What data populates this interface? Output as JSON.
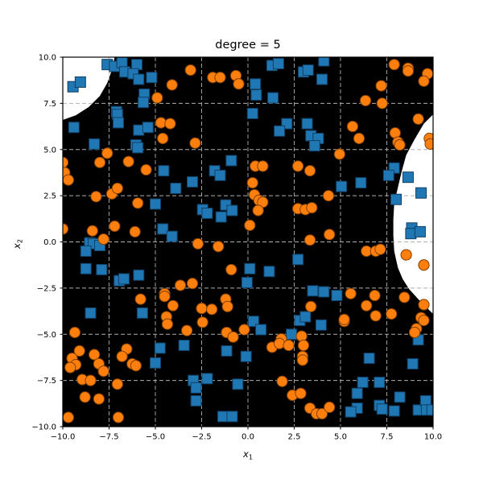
{
  "title": "degree = 5",
  "chart_data": {
    "type": "scatter",
    "title": "degree = 5",
    "xlabel": {
      "base": "x",
      "sub": "1"
    },
    "ylabel": {
      "base": "x",
      "sub": "2"
    },
    "xlim": [
      -10,
      10
    ],
    "ylim": [
      -10,
      10
    ],
    "grid": true,
    "grid_color": "#b0b0b0",
    "background_color": "#ffffff",
    "decision_region_color": "#000000",
    "white_region_color": "#ffffff",
    "xticks": {
      "values": [
        -10,
        -7.5,
        -5,
        -2.5,
        0,
        2.5,
        5,
        7.5,
        10
      ],
      "labels": [
        "−10.0",
        "−7.5",
        "−5.0",
        "−2.5",
        "0.0",
        "2.5",
        "5.0",
        "7.5",
        "10.0"
      ]
    },
    "yticks": {
      "values": [
        -10,
        -7.5,
        -5,
        -2.5,
        0,
        2.5,
        5,
        7.5,
        10
      ],
      "labels": [
        "−10.0",
        "−7.5",
        "−5.0",
        "−2.5",
        "0.0",
        "2.5",
        "5.0",
        "7.5",
        "10.0"
      ]
    },
    "white_regions": [
      {
        "name": "top-left-region",
        "points": [
          [
            -10,
            6.6
          ],
          [
            -9.3,
            6.85
          ],
          [
            -8.6,
            7.3
          ],
          [
            -8.0,
            7.9
          ],
          [
            -7.6,
            8.6
          ],
          [
            -7.35,
            9.3
          ],
          [
            -7.2,
            10
          ],
          [
            -10,
            10
          ]
        ]
      },
      {
        "name": "right-region",
        "points": [
          [
            10,
            6.9
          ],
          [
            9.5,
            6.4
          ],
          [
            9.0,
            5.55
          ],
          [
            8.55,
            4.7
          ],
          [
            8.3,
            3.8
          ],
          [
            8.1,
            2.95
          ],
          [
            7.9,
            2.1
          ],
          [
            7.85,
            1.2
          ],
          [
            7.85,
            0.35
          ],
          [
            7.9,
            -0.5
          ],
          [
            8.1,
            -1.4
          ],
          [
            8.35,
            -2.0
          ],
          [
            8.7,
            -2.55
          ],
          [
            9.2,
            -3.1
          ],
          [
            9.6,
            -3.5
          ],
          [
            10,
            -3.9
          ]
        ]
      }
    ],
    "series": [
      {
        "name": "class-0-blue-squares",
        "marker": "square",
        "color": "#1f77b4",
        "edge_color": "#123f63",
        "points": [
          [
            -9.45,
            8.4
          ],
          [
            -9.05,
            8.65
          ],
          [
            -7.6,
            9.6
          ],
          [
            -7.2,
            9.5
          ],
          [
            -6.8,
            9.7
          ],
          [
            -6.0,
            9.6
          ],
          [
            -6.65,
            9.2
          ],
          [
            -6.2,
            9.1
          ],
          [
            -5.9,
            8.8
          ],
          [
            -5.2,
            8.9
          ],
          [
            -5.6,
            8.0
          ],
          [
            -5.65,
            7.55
          ],
          [
            -7.1,
            7.05
          ],
          [
            -7.05,
            6.9
          ],
          [
            -7.0,
            6.45
          ],
          [
            -9.4,
            6.2
          ],
          [
            -5.9,
            6.05
          ],
          [
            -5.4,
            6.2
          ],
          [
            -8.3,
            5.3
          ],
          [
            -6.05,
            5.25
          ],
          [
            -5.95,
            5.1
          ],
          [
            -4.55,
            3.85
          ],
          [
            1.3,
            9.55
          ],
          [
            1.65,
            9.65
          ],
          [
            3.0,
            9.2
          ],
          [
            3.25,
            9.3
          ],
          [
            0.4,
            8.55
          ],
          [
            0.45,
            7.95
          ],
          [
            1.35,
            7.8
          ],
          [
            0.25,
            6.95
          ],
          [
            2.1,
            6.4
          ],
          [
            1.7,
            6.0
          ],
          [
            3.2,
            6.4
          ],
          [
            3.4,
            5.75
          ],
          [
            -0.9,
            4.4
          ],
          [
            -1.8,
            3.85
          ],
          [
            -1.5,
            3.6
          ],
          [
            4.1,
            9.8
          ],
          [
            4.0,
            8.8
          ],
          [
            3.8,
            5.6
          ],
          [
            3.6,
            5.2
          ],
          [
            7.9,
            4.0
          ],
          [
            7.6,
            3.6
          ],
          [
            8.65,
            3.5
          ],
          [
            -3.9,
            2.9
          ],
          [
            -5.0,
            2.05
          ],
          [
            -4.6,
            0.7
          ],
          [
            -4.1,
            0.3
          ],
          [
            -8.55,
            -0.05
          ],
          [
            -8.35,
            -0.1
          ],
          [
            -8.0,
            -0.2
          ],
          [
            -8.75,
            -0.5
          ],
          [
            -8.75,
            -1.45
          ],
          [
            -7.9,
            -1.5
          ],
          [
            -6.95,
            -2.1
          ],
          [
            -6.7,
            -2.0
          ],
          [
            -5.9,
            -1.8
          ],
          [
            -3.0,
            3.25
          ],
          [
            -1.2,
            2.0
          ],
          [
            -0.85,
            1.7
          ],
          [
            -2.45,
            1.75
          ],
          [
            -2.2,
            1.55
          ],
          [
            -1.45,
            1.35
          ],
          [
            0.1,
            -1.45
          ],
          [
            1.15,
            -1.6
          ],
          [
            -0.05,
            -2.2
          ],
          [
            2.7,
            -0.95
          ],
          [
            5.05,
            3.0
          ],
          [
            6.1,
            3.2
          ],
          [
            9.35,
            2.65
          ],
          [
            8.85,
            0.75
          ],
          [
            8.8,
            0.45
          ],
          [
            9.3,
            0.55
          ],
          [
            3.5,
            -2.65
          ],
          [
            4.1,
            -2.7
          ],
          [
            4.8,
            -2.9
          ],
          [
            8.0,
            2.3
          ],
          [
            -8.5,
            -3.85
          ],
          [
            -5.7,
            -3.85
          ],
          [
            -4.75,
            -5.75
          ],
          [
            -5.0,
            -6.55
          ],
          [
            0.3,
            -4.3
          ],
          [
            0.7,
            -4.75
          ],
          [
            -3.45,
            -5.6
          ],
          [
            -1.15,
            -5.9
          ],
          [
            -0.1,
            -6.2
          ],
          [
            2.8,
            -4.25
          ],
          [
            3.1,
            -4.05
          ],
          [
            2.35,
            -5.0
          ],
          [
            -2.95,
            -7.5
          ],
          [
            -2.2,
            -7.4
          ],
          [
            -2.8,
            -7.9
          ],
          [
            -2.8,
            -8.6
          ],
          [
            -0.55,
            -7.7
          ],
          [
            -1.35,
            -9.45
          ],
          [
            -0.85,
            -9.45
          ],
          [
            3.95,
            -4.5
          ],
          [
            9.2,
            -5.3
          ],
          [
            8.9,
            -6.6
          ],
          [
            6.55,
            -6.3
          ],
          [
            6.2,
            -7.6
          ],
          [
            7.1,
            -7.6
          ],
          [
            5.9,
            -8.2
          ],
          [
            8.2,
            -8.4
          ],
          [
            5.9,
            -9.0
          ],
          [
            5.55,
            -9.2
          ],
          [
            7.1,
            -8.85
          ],
          [
            7.25,
            -9.05
          ],
          [
            7.9,
            -9.15
          ],
          [
            9.2,
            -9.1
          ],
          [
            9.6,
            -8.6
          ],
          [
            9.65,
            -9.1
          ],
          [
            9.95,
            -9.1
          ]
        ]
      },
      {
        "name": "class-1-orange-circles",
        "marker": "circle",
        "color": "#ff7f0e",
        "edge_color": "#804000",
        "points": [
          [
            -4.1,
            8.5
          ],
          [
            -4.9,
            7.8
          ],
          [
            -4.7,
            6.45
          ],
          [
            -4.2,
            6.4
          ],
          [
            -4.6,
            5.6
          ],
          [
            -7.6,
            4.8
          ],
          [
            -8.0,
            4.3
          ],
          [
            -6.45,
            4.35
          ],
          [
            -5.5,
            3.9
          ],
          [
            -10,
            4.3
          ],
          [
            -9.9,
            3.75
          ],
          [
            -3.1,
            9.3
          ],
          [
            -1.9,
            8.9
          ],
          [
            -1.5,
            8.9
          ],
          [
            -0.65,
            9.0
          ],
          [
            -0.5,
            8.55
          ],
          [
            -2.85,
            5.35
          ],
          [
            0.4,
            4.1
          ],
          [
            0.8,
            4.1
          ],
          [
            2.7,
            4.1
          ],
          [
            3.35,
            3.85
          ],
          [
            7.9,
            9.6
          ],
          [
            8.65,
            9.4
          ],
          [
            8.65,
            9.25
          ],
          [
            9.7,
            9.1
          ],
          [
            9.5,
            8.7
          ],
          [
            7.2,
            8.45
          ],
          [
            6.35,
            7.65
          ],
          [
            7.25,
            7.5
          ],
          [
            9.2,
            6.65
          ],
          [
            5.65,
            6.25
          ],
          [
            6.0,
            5.6
          ],
          [
            7.95,
            5.9
          ],
          [
            8.1,
            5.4
          ],
          [
            8.2,
            5.25
          ],
          [
            9.8,
            5.6
          ],
          [
            9.85,
            5.3
          ],
          [
            4.95,
            4.75
          ],
          [
            -9.7,
            3.35
          ],
          [
            -8.2,
            2.45
          ],
          [
            -7.35,
            2.6
          ],
          [
            -7.05,
            2.9
          ],
          [
            -5.95,
            2.1
          ],
          [
            -10,
            0.7
          ],
          [
            -8.4,
            0.6
          ],
          [
            -7.2,
            0.85
          ],
          [
            -6.1,
            0.55
          ],
          [
            -7.8,
            0.15
          ],
          [
            -3.65,
            -2.35
          ],
          [
            -4.5,
            -2.8
          ],
          [
            -4.5,
            -2.95
          ],
          [
            -5.8,
            -3.1
          ],
          [
            0.25,
            3.2
          ],
          [
            0.35,
            2.55
          ],
          [
            0.6,
            2.25
          ],
          [
            0.8,
            2.15
          ],
          [
            0.55,
            1.7
          ],
          [
            0.1,
            0.9
          ],
          [
            2.7,
            1.8
          ],
          [
            3.1,
            1.75
          ],
          [
            3.45,
            1.85
          ],
          [
            -2.7,
            -0.1
          ],
          [
            -1.6,
            -0.25
          ],
          [
            -0.9,
            -1.5
          ],
          [
            -3.0,
            -2.25
          ],
          [
            3.35,
            0.1
          ],
          [
            -1.2,
            -3.1
          ],
          [
            4.35,
            2.5
          ],
          [
            4.4,
            0.4
          ],
          [
            6.4,
            -0.5
          ],
          [
            6.9,
            -0.5
          ],
          [
            7.15,
            -0.4
          ],
          [
            8.55,
            -0.7
          ],
          [
            9.5,
            -1.25
          ],
          [
            5.55,
            -2.8
          ],
          [
            6.85,
            -2.9
          ],
          [
            8.45,
            -3.0
          ],
          [
            6.4,
            -3.45
          ],
          [
            -9.35,
            -4.9
          ],
          [
            -9.1,
            -5.9
          ],
          [
            -9.5,
            -6.3
          ],
          [
            -9.3,
            -6.65
          ],
          [
            -9.6,
            -6.8
          ],
          [
            -8.3,
            -6.1
          ],
          [
            -8.05,
            -6.6
          ],
          [
            -7.8,
            -7.0
          ],
          [
            -8.95,
            -7.45
          ],
          [
            -8.5,
            -7.5
          ],
          [
            -8.8,
            -8.4
          ],
          [
            -8.05,
            -8.5
          ],
          [
            -6.55,
            -5.8
          ],
          [
            -6.8,
            -6.2
          ],
          [
            -6.25,
            -6.6
          ],
          [
            -6.05,
            -6.7
          ],
          [
            -7.05,
            -7.7
          ],
          [
            -7.0,
            -9.5
          ],
          [
            -9.7,
            -9.5
          ],
          [
            -4.4,
            -4.05
          ],
          [
            -4.35,
            -4.45
          ],
          [
            -4.05,
            -3.45
          ],
          [
            -2.5,
            -3.6
          ],
          [
            -1.95,
            -3.65
          ],
          [
            -2.45,
            -4.35
          ],
          [
            -1.1,
            -3.5
          ],
          [
            -3.3,
            -4.8
          ],
          [
            -1.15,
            -4.9
          ],
          [
            -0.8,
            -5.15
          ],
          [
            -0.2,
            -4.75
          ],
          [
            1.8,
            -5.25
          ],
          [
            1.3,
            -5.7
          ],
          [
            1.7,
            -5.5
          ],
          [
            2.2,
            -5.6
          ],
          [
            2.9,
            -5.1
          ],
          [
            3.0,
            -5.6
          ],
          [
            2.95,
            -6.2
          ],
          [
            2.95,
            -6.4
          ],
          [
            1.85,
            -7.55
          ],
          [
            2.4,
            -8.3
          ],
          [
            2.85,
            -8.2
          ],
          [
            3.35,
            -9.0
          ],
          [
            6.9,
            -4.0
          ],
          [
            7.75,
            -3.9
          ],
          [
            5.2,
            -4.3
          ],
          [
            5.2,
            -4.2
          ],
          [
            9.5,
            -3.4
          ],
          [
            9.35,
            -4.1
          ],
          [
            9.5,
            -4.25
          ],
          [
            9.1,
            -4.7
          ],
          [
            9.0,
            -4.9
          ],
          [
            3.7,
            -9.3
          ],
          [
            4.0,
            -9.3
          ],
          [
            4.4,
            -8.95
          ],
          [
            3.4,
            -3.5
          ]
        ]
      }
    ]
  }
}
